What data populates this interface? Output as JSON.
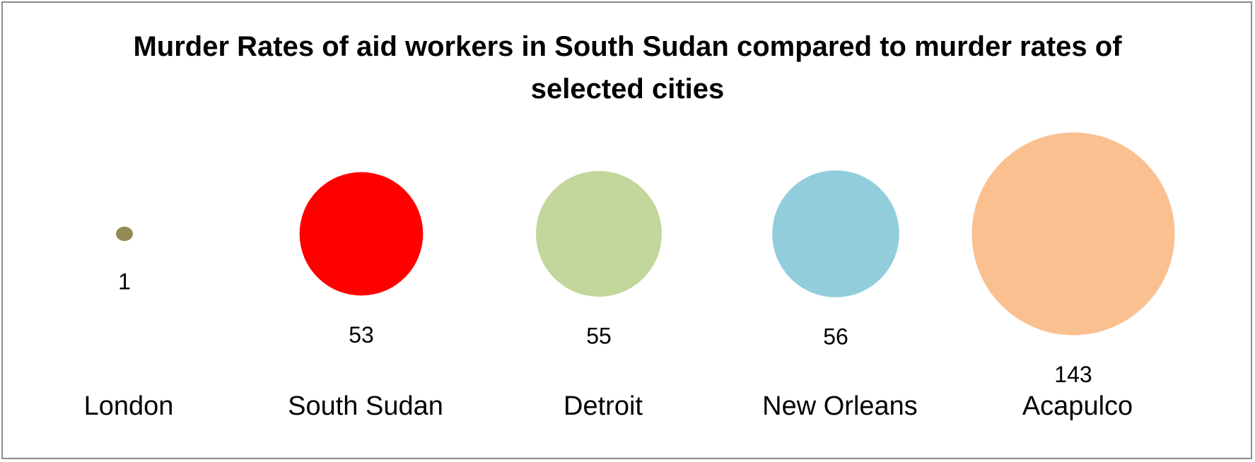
{
  "chart_data": {
    "type": "bubble",
    "title": "Murder Rates of aid workers in South Sudan compared to murder rates of selected cities",
    "categories": [
      "London",
      "South Sudan",
      "Detroit",
      "New Orleans",
      "Acapulco"
    ],
    "values": [
      1,
      53,
      55,
      56,
      143
    ],
    "colors": [
      "#948a54",
      "#ff0000",
      "#c3d69b",
      "#92cddc",
      "#fac090"
    ]
  }
}
